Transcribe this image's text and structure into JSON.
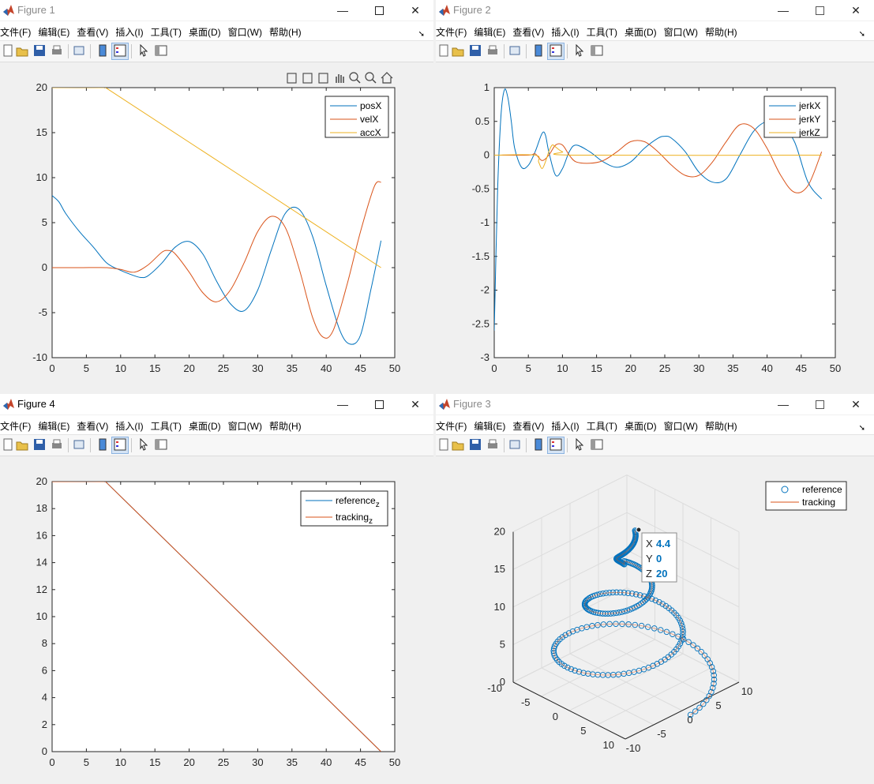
{
  "menu": [
    "文件(F)",
    "编辑(E)",
    "查看(V)",
    "插入(I)",
    "工具(T)",
    "桌面(D)",
    "窗口(W)",
    "帮助(H)"
  ],
  "colors": {
    "blue": "#0072BD",
    "orange": "#D95319",
    "yellow": "#EDB120"
  },
  "windows": {
    "fig1": {
      "title": "Figure 1"
    },
    "fig2": {
      "title": "Figure 2"
    },
    "fig4": {
      "title": "Figure 4"
    },
    "fig3": {
      "title": "Figure 3"
    }
  },
  "chart_data": [
    {
      "id": "fig1",
      "type": "line",
      "xlim": [
        0,
        50
      ],
      "ylim": [
        -10,
        20
      ],
      "xticks": [
        0,
        5,
        10,
        15,
        20,
        25,
        30,
        35,
        40,
        45,
        50
      ],
      "yticks": [
        -10,
        -5,
        0,
        5,
        10,
        15,
        20
      ],
      "legend_position": "top-right",
      "grid": false,
      "series": [
        {
          "name": "posX",
          "color": "#0072BD",
          "x": [
            0,
            1,
            2,
            4,
            6,
            8,
            10,
            12,
            13,
            14,
            16,
            18,
            20,
            22,
            24,
            26,
            28,
            30,
            32,
            34,
            36,
            38,
            40,
            42,
            43.5,
            45,
            46.5,
            48
          ],
          "y": [
            8,
            7.3,
            6,
            4,
            2.3,
            0.5,
            -0.3,
            -0.9,
            -1.1,
            -0.9,
            0.5,
            2.3,
            2.9,
            1.5,
            -1.5,
            -4,
            -4.8,
            -2.5,
            2,
            6,
            6.5,
            3.5,
            -2,
            -7,
            -8.5,
            -7.5,
            -2.5,
            3
          ]
        },
        {
          "name": "velX",
          "color": "#D95319",
          "x": [
            0,
            4,
            8,
            10,
            12,
            14,
            16,
            17,
            18,
            20,
            22,
            24,
            26,
            28,
            30,
            32,
            34,
            36,
            38,
            39.5,
            41,
            43,
            45,
            47,
            48
          ],
          "y": [
            0,
            0,
            0,
            -0.2,
            -0.5,
            0.3,
            1.7,
            1.9,
            1.5,
            -0.5,
            -2.8,
            -3.8,
            -2.5,
            0.5,
            4,
            5.7,
            4.5,
            0,
            -5.5,
            -7.7,
            -7,
            -2,
            4,
            9,
            9.5
          ]
        },
        {
          "name": "accX",
          "color": "#EDB120",
          "x": [
            0,
            7.5,
            8,
            48
          ],
          "y": [
            20,
            20,
            19.9,
            0
          ]
        }
      ]
    },
    {
      "id": "fig2",
      "type": "line",
      "xlim": [
        0,
        50
      ],
      "ylim": [
        -3,
        1
      ],
      "xticks": [
        0,
        5,
        10,
        15,
        20,
        25,
        30,
        35,
        40,
        45,
        50
      ],
      "yticks": [
        -3,
        -2.5,
        -2,
        -1.5,
        -1,
        -0.5,
        0,
        0.5,
        1
      ],
      "legend_position": "top-right",
      "grid": false,
      "series": [
        {
          "name": "jerkX",
          "color": "#0072BD",
          "x": [
            0,
            0.5,
            1,
            1.5,
            2,
            2.5,
            3,
            4,
            5,
            6,
            7,
            7.5,
            8,
            9,
            10,
            11,
            12,
            14,
            16,
            18,
            20,
            22,
            24,
            25,
            26,
            28,
            30,
            32,
            34,
            36,
            38,
            40,
            42,
            44,
            46,
            48
          ],
          "y": [
            -2.6,
            -0.5,
            0.6,
            0.97,
            0.85,
            0.5,
            0.1,
            -0.18,
            -0.15,
            0.05,
            0.32,
            0.3,
            0.05,
            -0.3,
            -0.2,
            0.05,
            0.15,
            0.05,
            -0.1,
            -0.18,
            -0.1,
            0.1,
            0.25,
            0.28,
            0.25,
            0.05,
            -0.25,
            -0.4,
            -0.35,
            0,
            0.35,
            0.5,
            0.45,
            0.2,
            -0.4,
            -0.65
          ]
        },
        {
          "name": "jerkY",
          "color": "#D95319",
          "x": [
            0,
            5,
            6,
            7,
            8,
            9,
            10,
            11,
            12,
            14,
            16,
            18,
            20,
            22,
            24,
            26,
            28,
            30,
            32,
            34,
            36,
            38,
            40,
            42,
            44,
            46,
            48
          ],
          "y": [
            0,
            0,
            0.02,
            -0.08,
            0,
            0.15,
            0.15,
            0,
            -0.1,
            -0.12,
            -0.08,
            0.05,
            0.2,
            0.2,
            0.05,
            -0.15,
            -0.3,
            -0.3,
            -0.1,
            0.2,
            0.45,
            0.4,
            0.1,
            -0.3,
            -0.55,
            -0.45,
            0.05
          ]
        },
        {
          "name": "jerkZ",
          "color": "#EDB120",
          "x": [
            0,
            6,
            6.5,
            7,
            7.5,
            8,
            8.5,
            9,
            10,
            12,
            48
          ],
          "y": [
            0,
            0,
            -0.1,
            -0.2,
            -0.1,
            0.05,
            0.15,
            0.12,
            0.05,
            0,
            0
          ]
        }
      ]
    },
    {
      "id": "fig4",
      "type": "line",
      "xlim": [
        0,
        50
      ],
      "ylim": [
        0,
        20
      ],
      "xticks": [
        0,
        5,
        10,
        15,
        20,
        25,
        30,
        35,
        40,
        45,
        50
      ],
      "yticks": [
        0,
        2,
        4,
        6,
        8,
        10,
        12,
        14,
        16,
        18,
        20
      ],
      "legend_position": "top-right",
      "grid": false,
      "series": [
        {
          "name": "reference",
          "subscript": "z",
          "color": "#0072BD",
          "x": [
            0,
            7.5,
            8,
            48
          ],
          "y": [
            20,
            20,
            19.9,
            0
          ]
        },
        {
          "name": "tracking",
          "subscript": "z",
          "color": "#D95319",
          "x": [
            0,
            7.5,
            8,
            48
          ],
          "y": [
            20,
            20,
            19.9,
            0
          ]
        }
      ]
    },
    {
      "id": "fig3",
      "type": "scatter",
      "view": "3d",
      "xlim": [
        -10,
        10
      ],
      "ylim": [
        -10,
        10
      ],
      "zlim": [
        0,
        20
      ],
      "xticks": [
        -10,
        -5,
        0,
        5,
        10
      ],
      "yticks": [
        -10,
        -5,
        0,
        5,
        10
      ],
      "zticks": [
        0,
        5,
        10,
        15,
        20
      ],
      "legend_position": "top-right",
      "grid": true,
      "series": [
        {
          "name": "reference",
          "marker": "o",
          "color": "#0072BD"
        },
        {
          "name": "tracking",
          "color": "#D95319"
        }
      ],
      "datatip": {
        "X": "4.4",
        "Y": "0",
        "Z": "20"
      }
    }
  ]
}
